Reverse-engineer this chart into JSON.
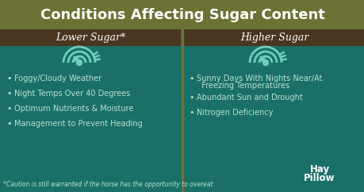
{
  "title": "Conditions Affecting Sugar Content",
  "title_bg": "#6B7233",
  "main_bg": "#1A7068",
  "divider_color": "#6B7233",
  "header_bg": "#4A3520",
  "text_color": "#B8E0D0",
  "white": "#FFFFFF",
  "left_header": "Lower Sugar*",
  "right_header": "Higher Sugar",
  "left_items": [
    "Foggy/Cloudy Weather",
    "Night Temps Over 40 Degrees",
    "Optimum Nutrients & Moisture",
    "Management to Prevent Heading"
  ],
  "right_item1_line1": "Sunny Days With Nights Near/At",
  "right_item1_line2": "  Freezing Temperatures",
  "right_item2": "Abundant Sun and Drought",
  "right_item3": "Nitrogen Deficiency",
  "footnote": "*Caution is still warranted if the horse has the opportunity to overeat",
  "gauge_color": "#6ECFBE",
  "title_fontsize": 13,
  "header_fontsize": 9,
  "item_fontsize": 7,
  "footnote_fontsize": 5.5
}
